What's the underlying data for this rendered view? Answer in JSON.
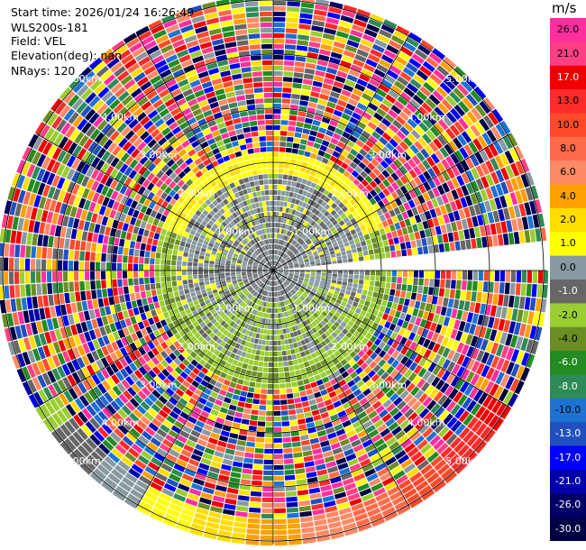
{
  "info": {
    "start_time": "Start time: 2026/01/24 16:26:49",
    "instrument": "WLS200s-181",
    "field": "Field: VEL",
    "elevation": "Elevation(deg): nan",
    "nrays": "NRays: 120"
  },
  "range_labels": [
    "1.00km",
    "2.00km",
    "3.00km",
    "4.00km",
    "5.00km"
  ],
  "colorbar": {
    "unit": "m/s",
    "ticks": [
      "26.0",
      "21.0",
      "17.0",
      "13.0",
      "10.0",
      "8.0",
      "6.0",
      "4.0",
      "2.0",
      "1.0",
      "0.0",
      "-1.0",
      "-2.0",
      "-4.0",
      "-6.0",
      "-8.0",
      "-10.0",
      "-13.0",
      "-17.0",
      "-21.0",
      "-26.0",
      "-30.0"
    ],
    "colors": [
      "#ff2fa0",
      "#ff3f85",
      "#ee0000",
      "#ff2a2a",
      "#ff4a2a",
      "#ff6a4a",
      "#ff8a66",
      "#ffa000",
      "#ffdd00",
      "#ffff00",
      "#8899a0",
      "#666666",
      "#9acd32",
      "#6b8e23",
      "#228b22",
      "#2e8b57",
      "#1e73d2",
      "#2050c0",
      "#0000ff",
      "#0000aa",
      "#000066",
      "#000044"
    ]
  }
}
